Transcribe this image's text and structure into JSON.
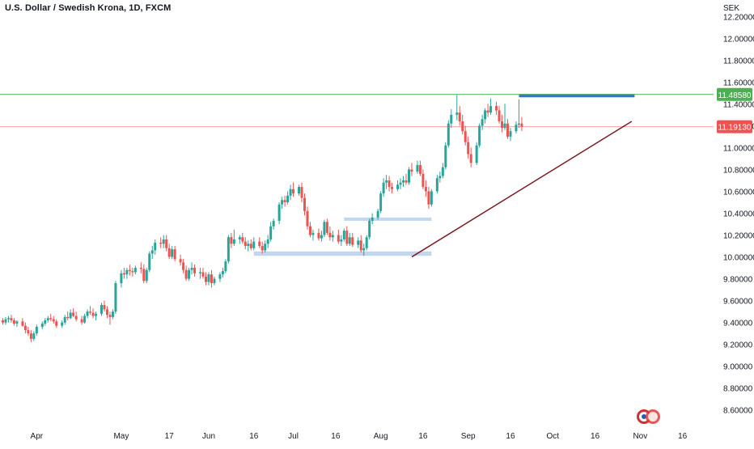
{
  "header": {
    "title": "U.S. Dollar / Swedish Krona, 1D, FXCM",
    "currency": "SEK"
  },
  "colors": {
    "up": "#26a69a",
    "down": "#ef5350",
    "resistance": "#4caf50",
    "current_price_line": "#f7a5a3",
    "trendline": "#7b1d25",
    "range_box": "#bcd1ee",
    "top_box": "#2f78c4"
  },
  "chart_data": {
    "type": "candlestick",
    "ylim": [
      8.45,
      12.35
    ],
    "y_ticks": [
      "12.20000",
      "12.00000",
      "11.80000",
      "11.60000",
      "11.40000",
      "11.20000",
      "11.00000",
      "10.80000",
      "10.60000",
      "10.40000",
      "10.20000",
      "10.00000",
      "9.80000",
      "9.60000",
      "9.40000",
      "9.20000",
      "9.00000",
      "8.80000",
      "8.60000"
    ],
    "x_ticks": [
      {
        "label": "Apr",
        "day": 9
      },
      {
        "label": "May",
        "day": 39
      },
      {
        "label": "17",
        "day": 56
      },
      {
        "label": "Jun",
        "day": 70
      },
      {
        "label": "16",
        "day": 86
      },
      {
        "label": "Jul",
        "day": 100
      },
      {
        "label": "16",
        "day": 115
      },
      {
        "label": "Aug",
        "day": 131
      },
      {
        "label": "16",
        "day": 146
      },
      {
        "label": "Sep",
        "day": 162
      },
      {
        "label": "16",
        "day": 177
      },
      {
        "label": "Oct",
        "day": 192
      },
      {
        "label": "16",
        "day": 207
      },
      {
        "label": "Nov",
        "day": 223
      },
      {
        "label": "16",
        "day": 238
      }
    ],
    "x_range": [
      -4,
      249
    ],
    "price_labels": [
      {
        "value": 11.4858,
        "text": "11.48580",
        "color": "#4caf50"
      },
      {
        "value": 11.1913,
        "text": "11.19130",
        "color": "#ef5350"
      }
    ],
    "resistance_level": 11.4858,
    "current_price": 11.1913,
    "trendline": {
      "from": [
        142,
        10.0
      ],
      "to": [
        220,
        11.24
      ]
    },
    "boxes": [
      {
        "x0": 86,
        "x1": 149,
        "y0": 10.01,
        "y1": 10.05,
        "style": "range_box"
      },
      {
        "x0": 118,
        "x1": 149,
        "y0": 10.33,
        "y1": 10.36,
        "style": "range_box"
      },
      {
        "x0": 180,
        "x1": 221,
        "y0": 11.46,
        "y1": 11.49,
        "style": "top_box"
      }
    ],
    "candles": [
      [
        -3,
        9.42,
        9.44,
        9.38,
        9.4
      ],
      [
        -2,
        9.4,
        9.45,
        9.38,
        9.43
      ],
      [
        -1,
        9.43,
        9.46,
        9.4,
        9.44
      ],
      [
        0,
        9.44,
        9.47,
        9.4,
        9.42
      ],
      [
        1,
        9.42,
        9.44,
        9.37,
        9.39
      ],
      [
        2,
        9.39,
        9.42,
        9.36,
        9.41
      ],
      [
        4,
        9.41,
        9.44,
        9.36,
        9.37
      ],
      [
        5,
        9.37,
        9.4,
        9.3,
        9.33
      ],
      [
        6,
        9.33,
        9.36,
        9.28,
        9.3
      ],
      [
        7,
        9.3,
        9.33,
        9.22,
        9.25
      ],
      [
        8,
        9.25,
        9.32,
        9.23,
        9.3
      ],
      [
        9,
        9.3,
        9.38,
        9.28,
        9.36
      ],
      [
        11,
        9.36,
        9.41,
        9.34,
        9.39
      ],
      [
        12,
        9.39,
        9.44,
        9.37,
        9.42
      ],
      [
        13,
        9.42,
        9.46,
        9.4,
        9.44
      ],
      [
        14,
        9.44,
        9.48,
        9.41,
        9.43
      ],
      [
        15,
        9.43,
        9.46,
        9.39,
        9.41
      ],
      [
        16,
        9.41,
        9.43,
        9.35,
        9.37
      ],
      [
        18,
        9.37,
        9.42,
        9.35,
        9.4
      ],
      [
        19,
        9.4,
        9.47,
        9.38,
        9.45
      ],
      [
        20,
        9.45,
        9.5,
        9.42,
        9.44
      ],
      [
        21,
        9.44,
        9.52,
        9.43,
        9.49
      ],
      [
        22,
        9.49,
        9.53,
        9.45,
        9.46
      ],
      [
        23,
        9.46,
        9.5,
        9.41,
        9.43
      ],
      [
        25,
        9.43,
        9.46,
        9.38,
        9.4
      ],
      [
        26,
        9.4,
        9.48,
        9.39,
        9.46
      ],
      [
        27,
        9.46,
        9.52,
        9.44,
        9.5
      ],
      [
        28,
        9.5,
        9.55,
        9.47,
        9.49
      ],
      [
        29,
        9.49,
        9.53,
        9.44,
        9.46
      ],
      [
        30,
        9.46,
        9.5,
        9.42,
        9.48
      ],
      [
        32,
        9.48,
        9.58,
        9.46,
        9.56
      ],
      [
        33,
        9.56,
        9.6,
        9.5,
        9.52
      ],
      [
        34,
        9.52,
        9.55,
        9.44,
        9.47
      ],
      [
        35,
        9.47,
        9.5,
        9.38,
        9.45
      ],
      [
        36,
        9.45,
        9.52,
        9.43,
        9.5
      ],
      [
        37,
        9.5,
        9.78,
        9.48,
        9.76
      ],
      [
        39,
        9.76,
        9.88,
        9.72,
        9.85
      ],
      [
        40,
        9.85,
        9.9,
        9.8,
        9.84
      ],
      [
        41,
        9.84,
        9.9,
        9.8,
        9.88
      ],
      [
        42,
        9.88,
        9.93,
        9.83,
        9.87
      ],
      [
        43,
        9.87,
        9.9,
        9.82,
        9.86
      ],
      [
        44,
        9.86,
        9.92,
        9.84,
        9.9
      ],
      [
        46,
        9.9,
        9.95,
        9.85,
        9.89
      ],
      [
        47,
        9.89,
        9.93,
        9.76,
        9.78
      ],
      [
        48,
        9.78,
        9.9,
        9.76,
        9.88
      ],
      [
        49,
        9.88,
        10.05,
        9.86,
        10.03
      ],
      [
        50,
        10.03,
        10.1,
        9.98,
        10.06
      ],
      [
        51,
        10.06,
        10.16,
        10.02,
        10.13
      ],
      [
        53,
        10.13,
        10.18,
        10.08,
        10.12
      ],
      [
        54,
        10.12,
        10.2,
        10.08,
        10.16
      ],
      [
        55,
        10.16,
        10.2,
        10.05,
        10.08
      ],
      [
        56,
        10.08,
        10.12,
        9.98,
        10.0
      ],
      [
        57,
        10.0,
        10.1,
        9.98,
        10.07
      ],
      [
        58,
        10.07,
        10.1,
        9.96,
        9.98
      ],
      [
        60,
        9.98,
        10.02,
        9.92,
        9.95
      ],
      [
        61,
        9.95,
        9.98,
        9.85,
        9.88
      ],
      [
        62,
        9.88,
        9.92,
        9.78,
        9.8
      ],
      [
        63,
        9.8,
        9.9,
        9.78,
        9.88
      ],
      [
        64,
        9.88,
        9.95,
        9.84,
        9.9
      ],
      [
        65,
        9.9,
        9.93,
        9.82,
        9.85
      ],
      [
        67,
        9.85,
        9.9,
        9.8,
        9.86
      ],
      [
        68,
        9.86,
        9.9,
        9.8,
        9.82
      ],
      [
        69,
        9.82,
        9.86,
        9.74,
        9.77
      ],
      [
        70,
        9.77,
        9.86,
        9.74,
        9.84
      ],
      [
        71,
        9.84,
        9.88,
        9.72,
        9.76
      ],
      [
        72,
        9.76,
        9.82,
        9.74,
        9.8
      ],
      [
        74,
        9.8,
        9.86,
        9.77,
        9.84
      ],
      [
        75,
        9.84,
        9.9,
        9.81,
        9.87
      ],
      [
        76,
        9.87,
        9.98,
        9.85,
        9.96
      ],
      [
        77,
        9.96,
        10.2,
        9.94,
        10.18
      ],
      [
        78,
        10.18,
        10.22,
        10.08,
        10.12
      ],
      [
        79,
        10.12,
        10.25,
        10.1,
        10.16
      ],
      [
        81,
        10.16,
        10.2,
        10.12,
        10.18
      ],
      [
        82,
        10.18,
        10.22,
        10.12,
        10.14
      ],
      [
        83,
        10.14,
        10.18,
        10.07,
        10.1
      ],
      [
        84,
        10.1,
        10.15,
        10.05,
        10.12
      ],
      [
        85,
        10.12,
        10.16,
        10.06,
        10.08
      ],
      [
        86,
        10.08,
        10.18,
        10.06,
        10.14
      ],
      [
        88,
        10.14,
        10.18,
        10.08,
        10.1
      ],
      [
        89,
        10.1,
        10.14,
        10.03,
        10.06
      ],
      [
        90,
        10.06,
        10.15,
        10.04,
        10.12
      ],
      [
        91,
        10.12,
        10.2,
        10.08,
        10.16
      ],
      [
        92,
        10.16,
        10.32,
        10.14,
        10.28
      ],
      [
        93,
        10.28,
        10.35,
        10.25,
        10.33
      ],
      [
        95,
        10.33,
        10.5,
        10.3,
        10.48
      ],
      [
        96,
        10.48,
        10.55,
        10.44,
        10.52
      ],
      [
        97,
        10.52,
        10.56,
        10.46,
        10.5
      ],
      [
        98,
        10.5,
        10.6,
        10.48,
        10.56
      ],
      [
        99,
        10.56,
        10.66,
        10.52,
        10.62
      ],
      [
        100,
        10.62,
        10.68,
        10.55,
        10.58
      ],
      [
        102,
        10.58,
        10.66,
        10.56,
        10.64
      ],
      [
        103,
        10.64,
        10.68,
        10.5,
        10.54
      ],
      [
        104,
        10.54,
        10.58,
        10.38,
        10.42
      ],
      [
        105,
        10.42,
        10.46,
        10.25,
        10.28
      ],
      [
        106,
        10.28,
        10.32,
        10.18,
        10.2
      ],
      [
        107,
        10.2,
        10.25,
        10.15,
        10.22
      ],
      [
        109,
        10.22,
        10.26,
        10.15,
        10.17
      ],
      [
        110,
        10.17,
        10.24,
        10.14,
        10.2
      ],
      [
        111,
        10.2,
        10.34,
        10.18,
        10.32
      ],
      [
        112,
        10.32,
        10.35,
        10.2,
        10.22
      ],
      [
        113,
        10.22,
        10.28,
        10.15,
        10.18
      ],
      [
        114,
        10.18,
        10.24,
        10.14,
        10.2
      ],
      [
        116,
        10.2,
        10.25,
        10.12,
        10.14
      ],
      [
        117,
        10.14,
        10.2,
        10.1,
        10.16
      ],
      [
        118,
        10.16,
        10.26,
        10.14,
        10.24
      ],
      [
        119,
        10.24,
        10.28,
        10.1,
        10.12
      ],
      [
        120,
        10.12,
        10.22,
        10.1,
        10.18
      ],
      [
        121,
        10.18,
        10.22,
        10.09,
        10.11
      ],
      [
        123,
        10.11,
        10.18,
        10.08,
        10.15
      ],
      [
        124,
        10.15,
        10.2,
        10.04,
        10.06
      ],
      [
        125,
        10.06,
        10.12,
        10.01,
        10.08
      ],
      [
        126,
        10.08,
        10.2,
        10.06,
        10.18
      ],
      [
        127,
        10.18,
        10.35,
        10.16,
        10.33
      ],
      [
        128,
        10.33,
        10.4,
        10.3,
        10.36
      ],
      [
        130,
        10.36,
        10.44,
        10.34,
        10.42
      ],
      [
        131,
        10.42,
        10.6,
        10.4,
        10.58
      ],
      [
        132,
        10.58,
        10.72,
        10.55,
        10.68
      ],
      [
        133,
        10.68,
        10.75,
        10.62,
        10.7
      ],
      [
        134,
        10.7,
        10.74,
        10.6,
        10.64
      ],
      [
        135,
        10.64,
        10.68,
        10.58,
        10.62
      ],
      [
        137,
        10.62,
        10.7,
        10.6,
        10.66
      ],
      [
        138,
        10.66,
        10.72,
        10.62,
        10.68
      ],
      [
        139,
        10.68,
        10.74,
        10.64,
        10.7
      ],
      [
        140,
        10.7,
        10.76,
        10.66,
        10.68
      ],
      [
        141,
        10.68,
        10.82,
        10.66,
        10.8
      ],
      [
        142,
        10.8,
        10.86,
        10.74,
        10.78
      ],
      [
        144,
        10.78,
        10.88,
        10.76,
        10.84
      ],
      [
        145,
        10.84,
        10.88,
        10.74,
        10.76
      ],
      [
        146,
        10.76,
        10.8,
        10.62,
        10.64
      ],
      [
        147,
        10.64,
        10.7,
        10.55,
        10.6
      ],
      [
        148,
        10.6,
        10.64,
        10.44,
        10.48
      ],
      [
        149,
        10.48,
        10.62,
        10.46,
        10.6
      ],
      [
        151,
        10.6,
        10.75,
        10.58,
        10.72
      ],
      [
        152,
        10.72,
        10.78,
        10.68,
        10.74
      ],
      [
        153,
        10.74,
        10.86,
        10.72,
        10.82
      ],
      [
        154,
        10.82,
        11.05,
        10.8,
        11.02
      ],
      [
        155,
        11.02,
        11.25,
        11.0,
        11.22
      ],
      [
        156,
        11.22,
        11.35,
        11.18,
        11.3
      ],
      [
        158,
        11.3,
        11.48,
        11.25,
        11.32
      ],
      [
        159,
        11.32,
        11.38,
        11.2,
        11.24
      ],
      [
        160,
        11.24,
        11.3,
        11.12,
        11.15
      ],
      [
        161,
        11.15,
        11.2,
        11.02,
        11.05
      ],
      [
        162,
        11.05,
        11.1,
        10.9,
        10.94
      ],
      [
        163,
        10.94,
        11.0,
        10.82,
        10.86
      ],
      [
        165,
        10.86,
        11.05,
        10.84,
        11.02
      ],
      [
        166,
        11.02,
        11.22,
        11.0,
        11.2
      ],
      [
        167,
        11.2,
        11.3,
        11.16,
        11.26
      ],
      [
        168,
        11.26,
        11.36,
        11.22,
        11.34
      ],
      [
        169,
        11.34,
        11.4,
        11.28,
        11.32
      ],
      [
        170,
        11.32,
        11.45,
        11.3,
        11.38
      ],
      [
        172,
        11.38,
        11.42,
        11.3,
        11.34
      ],
      [
        173,
        11.34,
        11.38,
        11.22,
        11.24
      ],
      [
        174,
        11.24,
        11.3,
        11.14,
        11.18
      ],
      [
        175,
        11.18,
        11.4,
        11.16,
        11.22
      ],
      [
        176,
        11.22,
        11.26,
        11.08,
        11.1
      ],
      [
        177,
        11.1,
        11.18,
        11.06,
        11.15
      ],
      [
        179,
        11.15,
        11.24,
        11.13,
        11.21
      ],
      [
        180,
        11.21,
        11.44,
        11.18,
        11.22
      ],
      [
        181,
        11.22,
        11.28,
        11.15,
        11.19
      ]
    ]
  }
}
